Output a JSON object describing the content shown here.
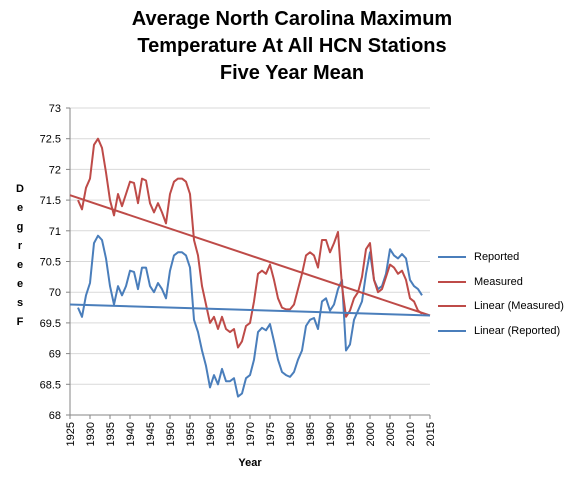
{
  "title_lines": [
    "Average North Carolina Maximum",
    "Temperature At All HCN Stations",
    "Five Year Mean"
  ],
  "colors": {
    "reported": "#4a7ebb",
    "measured": "#be4b48",
    "axis": "#868686",
    "grid": "#d9d9d9"
  },
  "chart_data": {
    "type": "line",
    "title": "Average North Carolina Maximum Temperature At All HCN Stations Five Year Mean",
    "xlabel": "Year",
    "ylabel": "Degrees F",
    "xlim": [
      1925,
      2015
    ],
    "ylim": [
      68,
      73
    ],
    "x_ticks": [
      "1925",
      "1930",
      "1935",
      "1940",
      "1945",
      "1950",
      "1955",
      "1960",
      "1965",
      "1970",
      "1975",
      "1980",
      "1985",
      "1990",
      "1995",
      "2000",
      "2005",
      "2010",
      "2015"
    ],
    "y_ticks": [
      "68",
      "68.5",
      "69",
      "69.5",
      "70",
      "70.5",
      "71",
      "71.5",
      "72",
      "72.5",
      "73"
    ],
    "grid": true,
    "legend_position": "right",
    "series": [
      {
        "name": "Reported",
        "color": "#4a7ebb",
        "x": [
          1927,
          1928,
          1929,
          1930,
          1931,
          1932,
          1933,
          1934,
          1935,
          1936,
          1937,
          1938,
          1939,
          1940,
          1941,
          1942,
          1943,
          1944,
          1945,
          1946,
          1947,
          1948,
          1949,
          1950,
          1951,
          1952,
          1953,
          1954,
          1955,
          1956,
          1957,
          1958,
          1959,
          1960,
          1961,
          1962,
          1963,
          1964,
          1965,
          1966,
          1967,
          1968,
          1969,
          1970,
          1971,
          1972,
          1973,
          1974,
          1975,
          1976,
          1977,
          1978,
          1979,
          1980,
          1981,
          1982,
          1983,
          1984,
          1985,
          1986,
          1987,
          1988,
          1989,
          1990,
          1991,
          1992,
          1993,
          1994,
          1995,
          1996,
          1997,
          1998,
          1999,
          2000,
          2001,
          2002,
          2003,
          2004,
          2005,
          2006,
          2007,
          2008,
          2009,
          2010,
          2011,
          2012,
          2013
        ],
        "y": [
          69.75,
          69.6,
          69.95,
          70.15,
          70.8,
          70.92,
          70.85,
          70.55,
          70.1,
          69.8,
          70.1,
          69.95,
          70.1,
          70.35,
          70.33,
          70.05,
          70.4,
          70.4,
          70.1,
          70.0,
          70.15,
          70.05,
          69.9,
          70.35,
          70.6,
          70.65,
          70.65,
          70.6,
          70.4,
          69.55,
          69.35,
          69.05,
          68.8,
          68.45,
          68.65,
          68.5,
          68.75,
          68.55,
          68.55,
          68.6,
          68.3,
          68.35,
          68.6,
          68.65,
          68.9,
          69.35,
          69.42,
          69.38,
          69.48,
          69.2,
          68.9,
          68.7,
          68.65,
          68.62,
          68.7,
          68.9,
          69.05,
          69.45,
          69.55,
          69.58,
          69.4,
          69.85,
          69.9,
          69.7,
          69.8,
          70.05,
          70.2,
          69.05,
          69.15,
          69.55,
          69.7,
          69.85,
          70.3,
          70.65,
          70.2,
          70.05,
          70.1,
          70.3,
          70.7,
          70.6,
          70.55,
          70.62,
          70.55,
          70.2,
          70.1,
          70.05,
          69.95
        ]
      },
      {
        "name": "Measured",
        "color": "#be4b48",
        "x": [
          1927,
          1928,
          1929,
          1930,
          1931,
          1932,
          1933,
          1934,
          1935,
          1936,
          1937,
          1938,
          1939,
          1940,
          1941,
          1942,
          1943,
          1944,
          1945,
          1946,
          1947,
          1948,
          1949,
          1950,
          1951,
          1952,
          1953,
          1954,
          1955,
          1956,
          1957,
          1958,
          1959,
          1960,
          1961,
          1962,
          1963,
          1964,
          1965,
          1966,
          1967,
          1968,
          1969,
          1970,
          1971,
          1972,
          1973,
          1974,
          1975,
          1976,
          1977,
          1978,
          1979,
          1980,
          1981,
          1982,
          1983,
          1984,
          1985,
          1986,
          1987,
          1988,
          1989,
          1990,
          1991,
          1992,
          1993,
          1994,
          1995,
          1996,
          1997,
          1998,
          1999,
          2000,
          2001,
          2002,
          2003,
          2004,
          2005,
          2006,
          2007,
          2008,
          2009,
          2010,
          2011,
          2012,
          2013
        ],
        "y": [
          71.5,
          71.35,
          71.7,
          71.85,
          72.4,
          72.5,
          72.35,
          71.95,
          71.5,
          71.25,
          71.6,
          71.4,
          71.6,
          71.8,
          71.78,
          71.45,
          71.85,
          71.82,
          71.45,
          71.3,
          71.45,
          71.3,
          71.12,
          71.6,
          71.8,
          71.85,
          71.85,
          71.8,
          71.6,
          70.85,
          70.6,
          70.1,
          69.8,
          69.5,
          69.6,
          69.4,
          69.6,
          69.4,
          69.35,
          69.4,
          69.1,
          69.2,
          69.45,
          69.5,
          69.85,
          70.3,
          70.35,
          70.3,
          70.45,
          70.2,
          69.9,
          69.75,
          69.72,
          69.72,
          69.8,
          70.05,
          70.3,
          70.6,
          70.65,
          70.6,
          70.4,
          70.85,
          70.85,
          70.65,
          70.8,
          70.98,
          70.1,
          69.6,
          69.7,
          69.9,
          70.0,
          70.25,
          70.7,
          70.8,
          70.2,
          70.0,
          70.05,
          70.25,
          70.45,
          70.4,
          70.3,
          70.35,
          70.2,
          69.9,
          69.85,
          69.7,
          69.65
        ]
      },
      {
        "name": "Linear (Measured)",
        "color": "#be4b48",
        "x": [
          1925,
          2015
        ],
        "y": [
          71.58,
          69.62
        ]
      },
      {
        "name": "Linear (Reported)",
        "color": "#4a7ebb",
        "x": [
          1925,
          2015
        ],
        "y": [
          69.8,
          69.62
        ]
      }
    ]
  }
}
